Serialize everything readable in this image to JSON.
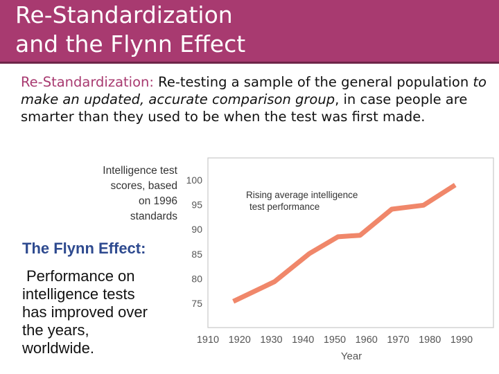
{
  "title": {
    "line1": "Re-Standardization",
    "line2": "and the Flynn Effect"
  },
  "definition": {
    "term": "Re-Standardization:",
    "text_part1": "  Re-testing a sample of the general population ",
    "text_italic": "to make an updated, accurate comparison group",
    "text_part2": ", in case people are smarter than they used to be when the test was first made."
  },
  "flynn": {
    "heading": "The Flynn Effect:",
    "body_line1": "Performance on",
    "body_line2": "intelligence tests",
    "body_line3": "has improved over",
    "body_line4": "the years,",
    "body_line5": "worldwide."
  },
  "colors": {
    "title_bar": "#a83a70",
    "line": "#f0876a",
    "flynn_heading": "#2e4a8f"
  },
  "chart_data": {
    "type": "line",
    "title_line1": "Rising average intelligence",
    "title_line2": "test performance",
    "ylabel_line1": "Intelligence test",
    "ylabel_line2": "scores, based",
    "ylabel_line3": "on 1996",
    "ylabel_line4": "standards",
    "xlabel": "Year",
    "xlim": [
      1910,
      1990
    ],
    "ylim": [
      72,
      102
    ],
    "x_ticks": [
      1910,
      1920,
      1930,
      1940,
      1950,
      1960,
      1970,
      1980,
      1990
    ],
    "y_ticks": [
      75,
      80,
      85,
      90,
      95,
      100
    ],
    "grid": false,
    "series": [
      {
        "x": [
          1918,
          1931,
          1942,
          1951,
          1958,
          1968,
          1978,
          1988
        ],
        "values": [
          75.4,
          79.4,
          85.1,
          88.5,
          88.8,
          94.1,
          94.9,
          99.0
        ]
      }
    ]
  }
}
